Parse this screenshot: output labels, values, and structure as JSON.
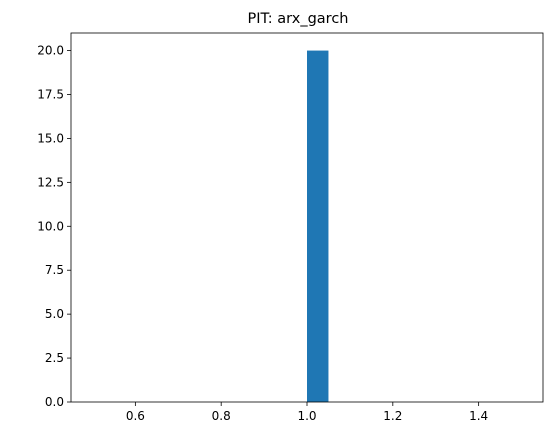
{
  "chart_data": {
    "type": "bar",
    "title": "PIT: arx_garch",
    "xlabel": "",
    "ylabel": "",
    "bars": [
      {
        "x_start": 1.0,
        "x_end": 1.05,
        "value": 20
      }
    ],
    "xlim": [
      0.45,
      1.55
    ],
    "ylim": [
      0,
      21
    ],
    "x_ticks": [
      {
        "value": 0.6,
        "label": "0.6"
      },
      {
        "value": 0.8,
        "label": "0.8"
      },
      {
        "value": 1.0,
        "label": "1.0"
      },
      {
        "value": 1.2,
        "label": "1.2"
      },
      {
        "value": 1.4,
        "label": "1.4"
      }
    ],
    "y_ticks": [
      {
        "value": 0,
        "label": "0.0"
      },
      {
        "value": 2.5,
        "label": "2.5"
      },
      {
        "value": 5,
        "label": "5.0"
      },
      {
        "value": 7.5,
        "label": "7.5"
      },
      {
        "value": 10,
        "label": "10.0"
      },
      {
        "value": 12.5,
        "label": "12.5"
      },
      {
        "value": 15,
        "label": "15.0"
      },
      {
        "value": 17.5,
        "label": "17.5"
      },
      {
        "value": 20,
        "label": "20.0"
      }
    ],
    "grid": false,
    "legend": false,
    "bar_color": "#1f77b4"
  }
}
